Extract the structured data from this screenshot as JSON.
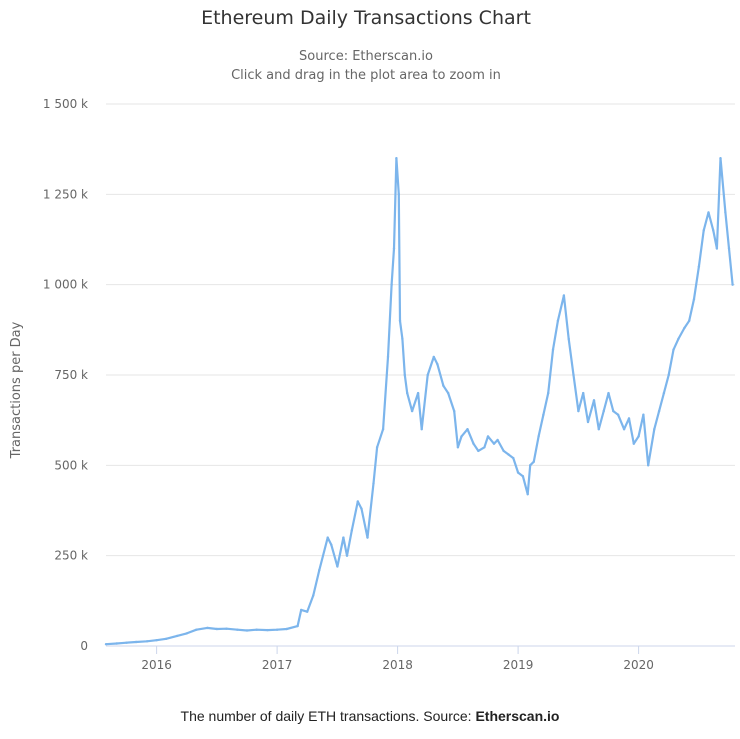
{
  "chart_data": {
    "type": "line",
    "title": "Ethereum Daily Transactions Chart",
    "subtitle": "Source: Etherscan.io",
    "subtitle2": "Click and drag in the plot area to zoom in",
    "ylabel": "Transactions per Day",
    "xlabel": "",
    "ylim": [
      0,
      1500000
    ],
    "xlim": [
      2015.58,
      2020.8
    ],
    "y_ticks": [
      0,
      250000,
      500000,
      750000,
      1000000,
      1250000,
      1500000
    ],
    "y_tick_labels": [
      "0",
      "250 k",
      "500 k",
      "750 k",
      "1 000 k",
      "1 250 k",
      "1 500 k"
    ],
    "x_ticks": [
      2016,
      2017,
      2018,
      2019,
      2020
    ],
    "x_tick_labels": [
      "2016",
      "2017",
      "2018",
      "2019",
      "2020"
    ],
    "grid": "horizontal",
    "series": [
      {
        "name": "Daily Transactions",
        "color": "#7cb5ec",
        "x": [
          2015.58,
          2015.67,
          2015.75,
          2015.83,
          2015.92,
          2016.0,
          2016.08,
          2016.17,
          2016.25,
          2016.33,
          2016.42,
          2016.5,
          2016.58,
          2016.67,
          2016.75,
          2016.83,
          2016.92,
          2017.0,
          2017.08,
          2017.17,
          2017.2,
          2017.25,
          2017.3,
          2017.35,
          2017.42,
          2017.45,
          2017.5,
          2017.55,
          2017.58,
          2017.62,
          2017.67,
          2017.7,
          2017.75,
          2017.8,
          2017.83,
          2017.88,
          2017.92,
          2017.95,
          2017.97,
          2017.99,
          2018.01,
          2018.02,
          2018.04,
          2018.06,
          2018.08,
          2018.12,
          2018.17,
          2018.2,
          2018.25,
          2018.3,
          2018.33,
          2018.38,
          2018.42,
          2018.47,
          2018.5,
          2018.53,
          2018.58,
          2018.63,
          2018.67,
          2018.72,
          2018.75,
          2018.8,
          2018.83,
          2018.88,
          2018.92,
          2018.96,
          2019.0,
          2019.04,
          2019.08,
          2019.1,
          2019.13,
          2019.17,
          2019.21,
          2019.25,
          2019.29,
          2019.33,
          2019.38,
          2019.42,
          2019.46,
          2019.5,
          2019.54,
          2019.58,
          2019.63,
          2019.67,
          2019.71,
          2019.75,
          2019.79,
          2019.83,
          2019.88,
          2019.92,
          2019.96,
          2020.0,
          2020.04,
          2020.08,
          2020.13,
          2020.17,
          2020.21,
          2020.25,
          2020.29,
          2020.33,
          2020.38,
          2020.42,
          2020.46,
          2020.5,
          2020.54,
          2020.58,
          2020.62,
          2020.65,
          2020.68,
          2020.72,
          2020.75,
          2020.78
        ],
        "values": [
          5000,
          7000,
          9000,
          11000,
          13000,
          16000,
          20000,
          28000,
          35000,
          45000,
          50000,
          47000,
          48000,
          45000,
          43000,
          45000,
          44000,
          45000,
          47000,
          55000,
          100000,
          95000,
          140000,
          210000,
          300000,
          280000,
          220000,
          300000,
          250000,
          320000,
          400000,
          380000,
          300000,
          450000,
          550000,
          600000,
          800000,
          1000000,
          1100000,
          1350000,
          1250000,
          900000,
          850000,
          750000,
          700000,
          650000,
          700000,
          600000,
          750000,
          800000,
          780000,
          720000,
          700000,
          650000,
          550000,
          580000,
          600000,
          560000,
          540000,
          550000,
          580000,
          560000,
          570000,
          540000,
          530000,
          520000,
          480000,
          470000,
          420000,
          500000,
          510000,
          580000,
          640000,
          700000,
          820000,
          900000,
          970000,
          850000,
          750000,
          650000,
          700000,
          620000,
          680000,
          600000,
          650000,
          700000,
          650000,
          640000,
          600000,
          630000,
          560000,
          580000,
          640000,
          500000,
          600000,
          650000,
          700000,
          750000,
          820000,
          850000,
          880000,
          900000,
          960000,
          1050000,
          1150000,
          1200000,
          1150000,
          1100000,
          1350000,
          1200000,
          1100000,
          1000000
        ]
      }
    ]
  },
  "caption": {
    "text": "The number of daily ETH transactions. Source: ",
    "bold": "Etherscan.io"
  }
}
